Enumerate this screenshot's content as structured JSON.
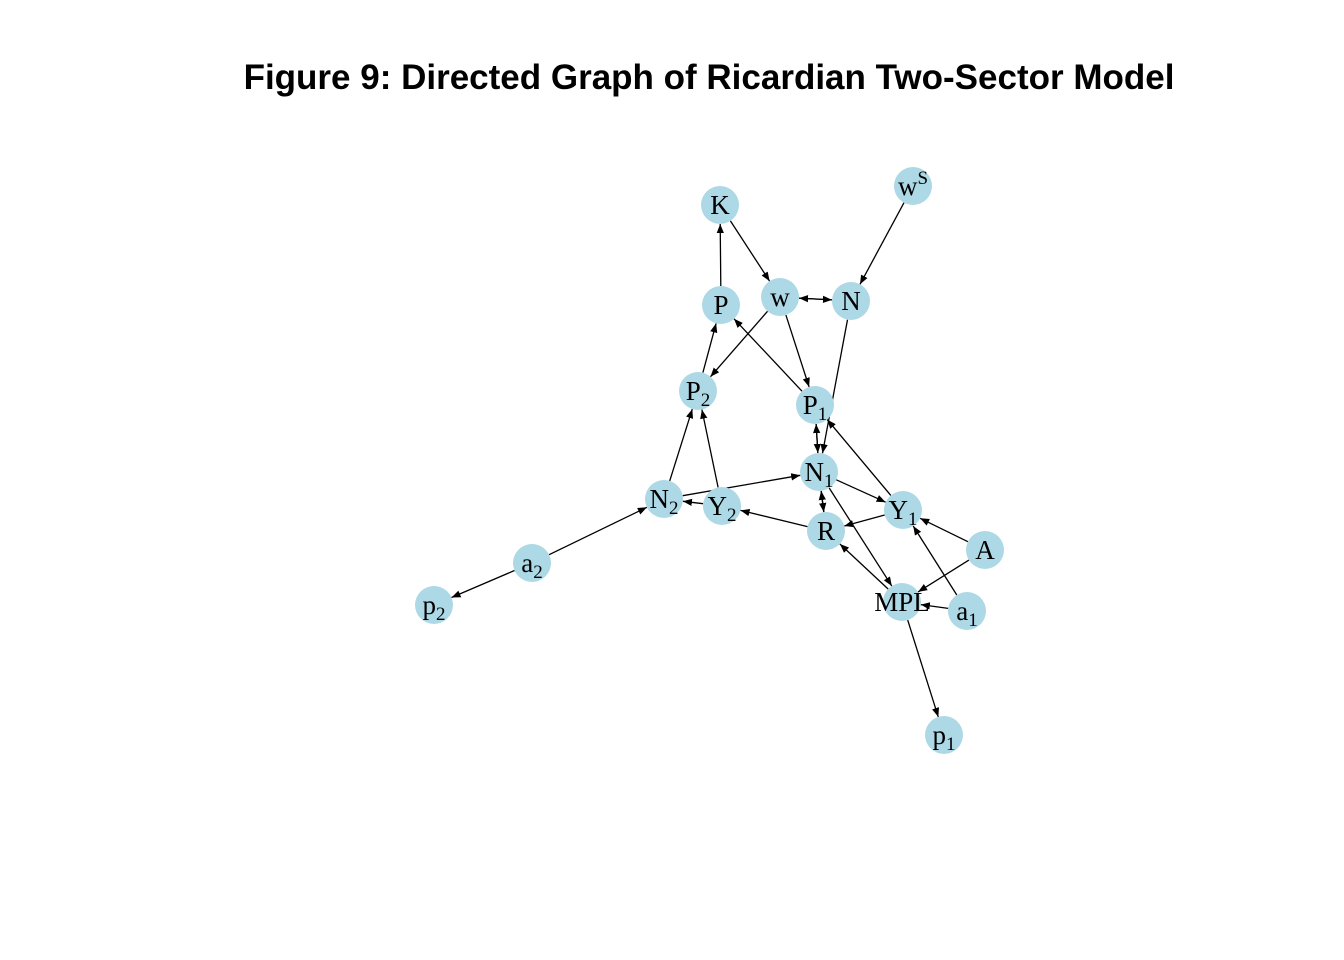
{
  "title": "Figure 9: Directed Graph of Ricardian Two-Sector Model",
  "colors": {
    "node_fill": "#add8e6",
    "edge": "#000000",
    "text": "#000000"
  },
  "nodes": [
    {
      "id": "K",
      "base": "K"
    },
    {
      "id": "wS",
      "base": "w",
      "sup": "S"
    },
    {
      "id": "w",
      "base": "w"
    },
    {
      "id": "N",
      "base": "N"
    },
    {
      "id": "P",
      "base": "P"
    },
    {
      "id": "P2",
      "base": "P",
      "sub": "2"
    },
    {
      "id": "P1",
      "base": "P",
      "sub": "1"
    },
    {
      "id": "N1",
      "base": "N",
      "sub": "1"
    },
    {
      "id": "N2",
      "base": "N",
      "sub": "2"
    },
    {
      "id": "Y2",
      "base": "Y",
      "sub": "2"
    },
    {
      "id": "Y1",
      "base": "Y",
      "sub": "1"
    },
    {
      "id": "R",
      "base": "R"
    },
    {
      "id": "A",
      "base": "A"
    },
    {
      "id": "a2",
      "base": "a",
      "sub": "2"
    },
    {
      "id": "p2",
      "base": "p",
      "sub": "2"
    },
    {
      "id": "MPL",
      "base": "MPL"
    },
    {
      "id": "a1",
      "base": "a",
      "sub": "1"
    },
    {
      "id": "p1",
      "base": "p",
      "sub": "1"
    }
  ],
  "edges": [
    [
      "P",
      "K"
    ],
    [
      "K",
      "w"
    ],
    [
      "N",
      "w"
    ],
    [
      "w",
      "N"
    ],
    [
      "wS",
      "N"
    ],
    [
      "w",
      "P2"
    ],
    [
      "w",
      "P1"
    ],
    [
      "P1",
      "P"
    ],
    [
      "P2",
      "P"
    ],
    [
      "N2",
      "P2"
    ],
    [
      "Y2",
      "P2"
    ],
    [
      "N",
      "N1"
    ],
    [
      "N1",
      "P1"
    ],
    [
      "P1",
      "N1"
    ],
    [
      "Y1",
      "P1"
    ],
    [
      "N2",
      "N1"
    ],
    [
      "N1",
      "Y1"
    ],
    [
      "N1",
      "R"
    ],
    [
      "R",
      "N1"
    ],
    [
      "Y1",
      "R"
    ],
    [
      "Y2",
      "N2"
    ],
    [
      "R",
      "Y2"
    ],
    [
      "A",
      "Y1"
    ],
    [
      "a1",
      "Y1"
    ],
    [
      "N1",
      "MPL"
    ],
    [
      "MPL",
      "R"
    ],
    [
      "A",
      "MPL"
    ],
    [
      "a1",
      "MPL"
    ],
    [
      "MPL",
      "p1"
    ],
    [
      "a2",
      "N2"
    ],
    [
      "a2",
      "p2"
    ]
  ]
}
